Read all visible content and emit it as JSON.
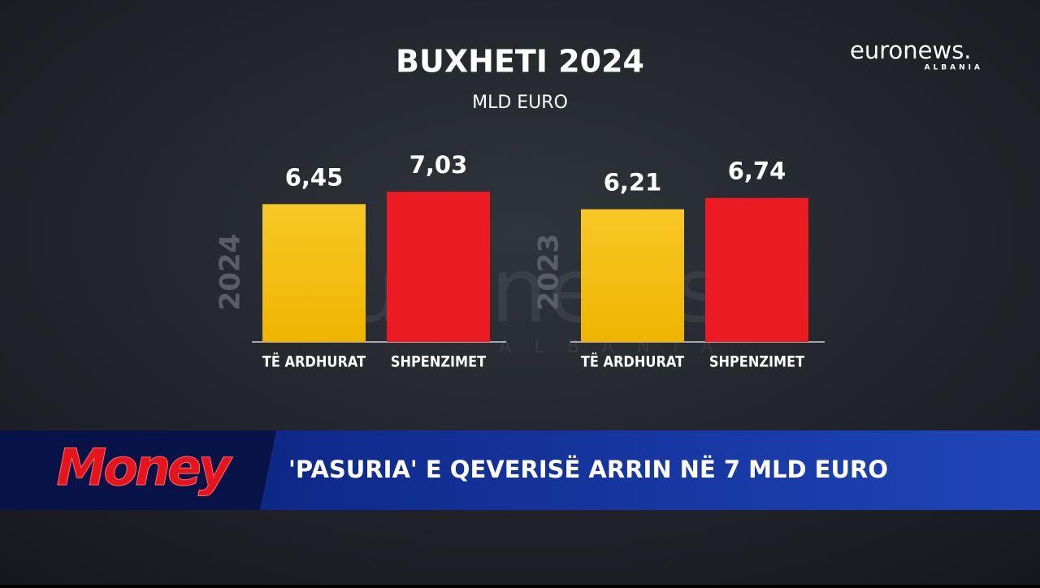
{
  "header": {
    "logo": "euronews.",
    "logo_sub": "ALBANIA"
  },
  "chart_data": [
    {
      "type": "bar",
      "title": "BUXHETI 2024",
      "subtitle": "MLD EURO",
      "label": "2024",
      "categories": [
        "TË ARDHURAT",
        "SHPENZIMET"
      ],
      "values": [
        6.45,
        7.03
      ],
      "value_labels": [
        "6,45",
        "7,03"
      ],
      "colors": [
        "#f5c01a",
        "#ec1a22"
      ]
    },
    {
      "type": "bar",
      "label": "2023",
      "categories": [
        "TË ARDHURAT",
        "SHPENZIMET"
      ],
      "values": [
        6.21,
        6.74
      ],
      "value_labels": [
        "6,21",
        "6,74"
      ],
      "colors": [
        "#f5c01a",
        "#ec1a22"
      ]
    }
  ],
  "lower_third": {
    "show": "Money",
    "headline": "'PASURIA' E QEVERISË ARRIN NË 7 MLD EURO"
  }
}
